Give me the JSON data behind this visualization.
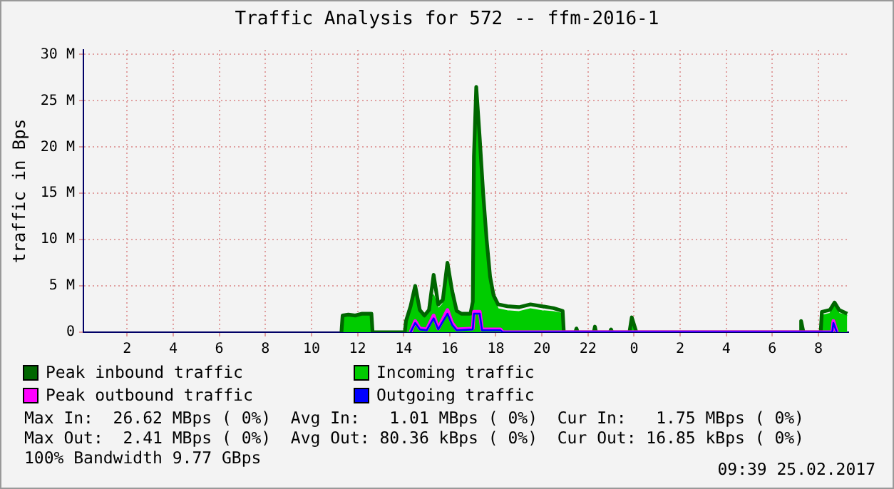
{
  "chart_data": {
    "type": "area",
    "title": "Traffic Analysis for 572 -- ffm-2016-1",
    "ylabel": "traffic in Bps",
    "xlim": [
      "2017-02-24T00:06",
      "2017-02-25T09:18"
    ],
    "xticks": [
      {
        "value": "2017-02-24T02:00",
        "label": "2"
      },
      {
        "value": "2017-02-24T04:00",
        "label": "4"
      },
      {
        "value": "2017-02-24T06:00",
        "label": "6"
      },
      {
        "value": "2017-02-24T08:00",
        "label": "8"
      },
      {
        "value": "2017-02-24T10:00",
        "label": "10"
      },
      {
        "value": "2017-02-24T12:00",
        "label": "12"
      },
      {
        "value": "2017-02-24T14:00",
        "label": "14"
      },
      {
        "value": "2017-02-24T16:00",
        "label": "16"
      },
      {
        "value": "2017-02-24T18:00",
        "label": "18"
      },
      {
        "value": "2017-02-24T20:00",
        "label": "20"
      },
      {
        "value": "2017-02-24T22:00",
        "label": "22"
      },
      {
        "value": "2017-02-25T00:00",
        "label": "0"
      },
      {
        "value": "2017-02-25T02:00",
        "label": "2"
      },
      {
        "value": "2017-02-25T04:00",
        "label": "4"
      },
      {
        "value": "2017-02-25T06:00",
        "label": "6"
      },
      {
        "value": "2017-02-25T08:00",
        "label": "8"
      }
    ],
    "ylim": [
      0,
      30.5
    ],
    "yticks": [
      {
        "value": 0,
        "label": "0"
      },
      {
        "value": 5,
        "label": "5 M"
      },
      {
        "value": 10,
        "label": "10 M"
      },
      {
        "value": 15,
        "label": "15 M"
      },
      {
        "value": 20,
        "label": "20 M"
      },
      {
        "value": 25,
        "label": "25 M"
      },
      {
        "value": 30,
        "label": "30 M"
      }
    ],
    "grid": true,
    "legend": "bottom",
    "series": [
      {
        "name": "Peak inbound traffic",
        "type": "line",
        "color": "#006600",
        "x": [
          "2017-02-24T11:18",
          "2017-02-24T11:21",
          "2017-02-24T11:36",
          "2017-02-24T11:54",
          "2017-02-24T12:12",
          "2017-02-24T12:36",
          "2017-02-24T12:39",
          "2017-02-24T14:03",
          "2017-02-24T14:06",
          "2017-02-24T14:18",
          "2017-02-24T14:30",
          "2017-02-24T14:42",
          "2017-02-24T14:54",
          "2017-02-24T15:06",
          "2017-02-24T15:18",
          "2017-02-24T15:30",
          "2017-02-24T15:42",
          "2017-02-24T15:54",
          "2017-02-24T16:06",
          "2017-02-24T16:18",
          "2017-02-24T16:30",
          "2017-02-24T16:54",
          "2017-02-24T17:00",
          "2017-02-24T17:03",
          "2017-02-24T17:09",
          "2017-02-24T17:18",
          "2017-02-24T17:27",
          "2017-02-24T17:36",
          "2017-02-24T17:45",
          "2017-02-24T17:54",
          "2017-02-24T18:06",
          "2017-02-24T18:30",
          "2017-02-24T19:00",
          "2017-02-24T19:30",
          "2017-02-24T20:00",
          "2017-02-24T20:30",
          "2017-02-24T20:54",
          "2017-02-24T20:57",
          "2017-02-24T21:27",
          "2017-02-24T21:30",
          "2017-02-24T21:33",
          "2017-02-24T22:15",
          "2017-02-24T22:18",
          "2017-02-24T22:21",
          "2017-02-24T22:57",
          "2017-02-24T23:00",
          "2017-02-24T23:03",
          "2017-02-24T23:48",
          "2017-02-24T23:54",
          "2017-02-25T00:06",
          "2017-02-25T07:12",
          "2017-02-25T07:15",
          "2017-02-25T07:21",
          "2017-02-25T08:06",
          "2017-02-25T08:09",
          "2017-02-25T08:30",
          "2017-02-25T08:42",
          "2017-02-25T08:54",
          "2017-02-25T09:15"
        ],
        "values": [
          0,
          1.8,
          1.9,
          1.8,
          2.0,
          2.0,
          0,
          0,
          1.2,
          2.8,
          5.0,
          2.4,
          1.8,
          2.4,
          6.2,
          3.0,
          3.5,
          7.5,
          4.5,
          2.3,
          2.0,
          2.0,
          3.3,
          19,
          26.5,
          21,
          15,
          10,
          6,
          4,
          3,
          2.8,
          2.7,
          3.0,
          2.8,
          2.6,
          2.3,
          0,
          0,
          0.4,
          0,
          0,
          0.6,
          0,
          0,
          0.3,
          0,
          0,
          1.6,
          0,
          0,
          1.2,
          0,
          0,
          2.2,
          2.4,
          3.2,
          2.4,
          2.0
        ]
      },
      {
        "name": "Incoming traffic",
        "color": "#00cc00",
        "x": [
          "2017-02-24T11:18",
          "2017-02-24T11:21",
          "2017-02-24T11:36",
          "2017-02-24T11:54",
          "2017-02-24T12:12",
          "2017-02-24T12:36",
          "2017-02-24T12:39",
          "2017-02-24T14:03",
          "2017-02-24T14:06",
          "2017-02-24T14:18",
          "2017-02-24T14:30",
          "2017-02-24T14:42",
          "2017-02-24T14:54",
          "2017-02-24T15:06",
          "2017-02-24T15:18",
          "2017-02-24T15:30",
          "2017-02-24T15:42",
          "2017-02-24T15:54",
          "2017-02-24T16:06",
          "2017-02-24T16:18",
          "2017-02-24T16:30",
          "2017-02-24T16:54",
          "2017-02-24T17:00",
          "2017-02-24T17:03",
          "2017-02-24T17:09",
          "2017-02-24T17:18",
          "2017-02-24T17:27",
          "2017-02-24T17:36",
          "2017-02-24T17:45",
          "2017-02-24T17:54",
          "2017-02-24T18:06",
          "2017-02-24T18:30",
          "2017-02-24T19:00",
          "2017-02-24T19:30",
          "2017-02-24T20:00",
          "2017-02-24T20:30",
          "2017-02-24T20:54",
          "2017-02-24T20:57",
          "2017-02-24T21:27",
          "2017-02-24T21:30",
          "2017-02-24T21:33",
          "2017-02-24T22:15",
          "2017-02-24T22:18",
          "2017-02-24T22:21",
          "2017-02-24T22:57",
          "2017-02-24T23:00",
          "2017-02-24T23:03",
          "2017-02-24T23:48",
          "2017-02-24T23:54",
          "2017-02-25T00:06",
          "2017-02-25T07:12",
          "2017-02-25T07:15",
          "2017-02-25T07:21",
          "2017-02-25T08:06",
          "2017-02-25T08:09",
          "2017-02-25T08:30",
          "2017-02-25T08:42",
          "2017-02-25T08:54",
          "2017-02-25T09:15"
        ],
        "values": [
          0,
          1.6,
          1.7,
          1.6,
          1.8,
          1.8,
          0,
          0,
          1.0,
          2.5,
          4.3,
          2.0,
          1.5,
          2.0,
          4.0,
          2.5,
          3.0,
          6.3,
          4.0,
          2.0,
          1.8,
          1.8,
          3.0,
          16,
          25.5,
          19,
          14,
          9,
          5.5,
          3.5,
          2.5,
          2.3,
          2.2,
          2.5,
          2.3,
          2.2,
          2.0,
          0,
          0,
          0.3,
          0,
          0,
          0.5,
          0,
          0,
          0.2,
          0,
          0,
          1.3,
          0,
          0,
          1.0,
          0,
          0,
          1.8,
          2.0,
          2.8,
          2.0,
          1.8
        ]
      },
      {
        "name": "Peak outbound traffic",
        "type": "line",
        "color": "#ff00ff",
        "x": [
          "2017-02-24T14:18",
          "2017-02-24T14:30",
          "2017-02-24T14:42",
          "2017-02-24T15:00",
          "2017-02-24T15:18",
          "2017-02-24T15:30",
          "2017-02-24T15:54",
          "2017-02-24T16:06",
          "2017-02-24T16:18",
          "2017-02-24T17:00",
          "2017-02-24T17:03",
          "2017-02-24T17:18",
          "2017-02-24T17:24",
          "2017-02-24T18:12",
          "2017-02-24T18:18",
          "2017-02-25T08:36",
          "2017-02-25T08:39",
          "2017-02-25T08:48"
        ],
        "values": [
          0,
          1.2,
          0.4,
          0.3,
          1.8,
          0.4,
          2.4,
          1.0,
          0.3,
          0.4,
          2.2,
          2.2,
          0.3,
          0.3,
          0,
          0,
          1.2,
          0
        ]
      },
      {
        "name": "Outgoing traffic",
        "type": "line",
        "color": "#0000ff",
        "x": [
          "2017-02-24T14:18",
          "2017-02-24T14:30",
          "2017-02-24T14:42",
          "2017-02-24T15:00",
          "2017-02-24T15:18",
          "2017-02-24T15:30",
          "2017-02-24T15:54",
          "2017-02-24T16:06",
          "2017-02-24T16:18",
          "2017-02-24T17:00",
          "2017-02-24T17:03",
          "2017-02-24T17:18",
          "2017-02-24T17:24",
          "2017-02-24T18:12",
          "2017-02-24T18:18",
          "2017-02-25T08:36",
          "2017-02-25T08:39",
          "2017-02-25T08:48"
        ],
        "values": [
          0,
          1.0,
          0.3,
          0.2,
          1.5,
          0.3,
          2.0,
          0.8,
          0.2,
          0.3,
          2.0,
          2.0,
          0.2,
          0.2,
          0,
          0,
          1.0,
          0
        ]
      }
    ],
    "annotations": [
      "Max In:  26.62 MBps ( 0%)  Avg In:   1.01 MBps ( 0%)  Cur In:   1.75 MBps ( 0%)",
      "Max Out:  2.41 MBps ( 0%)  Avg Out: 80.36 kBps ( 0%)  Cur Out: 16.85 kBps ( 0%)",
      "100% Bandwidth 9.77 GBps",
      "09:39 25.02.2017"
    ]
  }
}
